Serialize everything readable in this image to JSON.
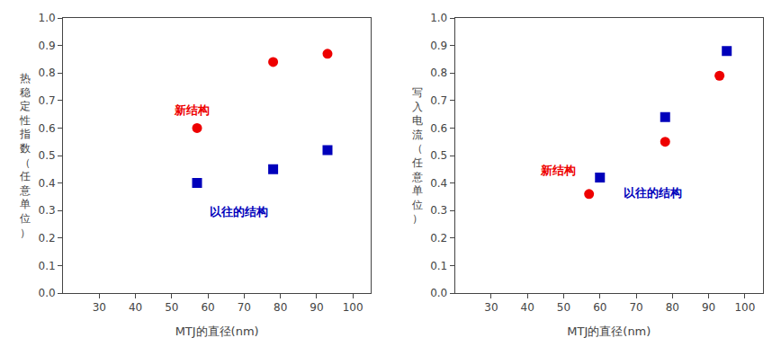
{
  "chart_data": [
    {
      "type": "scatter",
      "xlabel": "MTJ的直径(nm)",
      "ylabel": "热稳定性指数（任意单位）",
      "series": [
        {
          "color": "#EE0000",
          "marker": "circle",
          "x": [
            57,
            78,
            93
          ],
          "values": [
            0.6,
            0.84,
            0.87
          ]
        },
        {
          "color": "#0000BB",
          "marker": "square",
          "x": [
            57,
            78,
            93
          ],
          "values": [
            0.4,
            0.45,
            0.52
          ]
        }
      ],
      "annotations": [
        {
          "text": "新结构",
          "x": 50,
          "y": 0.665,
          "color": "#EE0000"
        },
        {
          "text": "以往的结构",
          "x": 60,
          "y": 0.295,
          "color": "#0000BB"
        }
      ],
      "xlim": [
        20,
        105
      ],
      "ylim": [
        0.0,
        1.0
      ],
      "xticks": [
        30,
        40,
        50,
        60,
        70,
        80,
        90,
        100
      ],
      "yticks": [
        {
          "value": 0.0,
          "label": "0.0"
        },
        0.1,
        0.2,
        0.3,
        0.4,
        0.5,
        0.6,
        0.7,
        0.8,
        0.9,
        {
          "value": 1.0,
          "label": "1.0"
        }
      ],
      "grid": false
    },
    {
      "type": "scatter",
      "xlabel": "MTJ的直径(nm)",
      "ylabel": "写入电流（任意单位）",
      "series": [
        {
          "color": "#EE0000",
          "marker": "circle",
          "x": [
            57,
            78,
            93
          ],
          "values": [
            0.36,
            0.55,
            0.79
          ]
        },
        {
          "color": "#0000BB",
          "marker": "square",
          "x": [
            60,
            78,
            95
          ],
          "values": [
            0.42,
            0.64,
            0.88
          ]
        }
      ],
      "annotations": [
        {
          "text": "新结构",
          "x": 43,
          "y": 0.445,
          "color": "#EE0000"
        },
        {
          "text": "以往的结构",
          "x": 66,
          "y": 0.365,
          "color": "#0000BB"
        }
      ],
      "xlim": [
        20,
        105
      ],
      "ylim": [
        0.0,
        1.0
      ],
      "xticks": [
        30,
        40,
        50,
        60,
        70,
        80,
        90,
        100
      ],
      "yticks": [
        {
          "value": 0.0,
          "label": "0.0"
        },
        0.1,
        0.2,
        0.3,
        0.4,
        0.5,
        0.6,
        0.7,
        0.8,
        0.9,
        {
          "value": 1.0,
          "label": "1.0"
        }
      ],
      "grid": false
    }
  ]
}
